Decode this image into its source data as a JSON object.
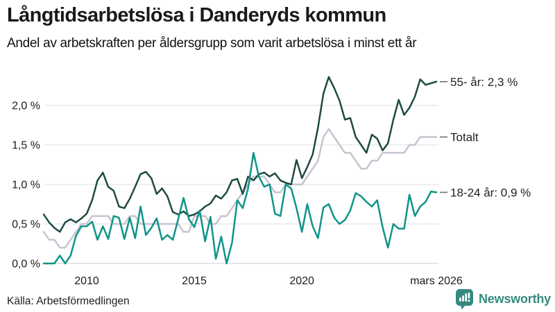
{
  "header": {
    "title": "Långtidsarbetslösa i Danderyds kommun",
    "subtitle": "Andel av arbetskraften per åldersgrupp som varit arbetslösa i minst ett år"
  },
  "footer": {
    "source": "Källa: Arbetsförmedlingen",
    "brand": "Newsworthy"
  },
  "colors": {
    "grid": "#e5e4ea",
    "zero_line": "#d6d5dc",
    "end_dash": "#6e6e6e",
    "axis_text": "#1a1a1a",
    "brand_teal": "#35897f"
  },
  "chart_data": {
    "type": "line",
    "title": "Långtidsarbetslösa i Danderyds kommun",
    "subtitle": "Andel av arbetskraften per åldersgrupp som varit arbetslösa i minst ett år",
    "xlabel": "",
    "ylabel": "",
    "grid": "horizontal",
    "legend_position": "right-end-labels",
    "xlim": [
      2008,
      2026.25
    ],
    "ylim": [
      0,
      2.45
    ],
    "x_start": 2008,
    "x_step": 0.25,
    "x_ticks": [
      {
        "x": 2010,
        "label": "2010"
      },
      {
        "x": 2015,
        "label": "2015"
      },
      {
        "x": 2020,
        "label": "2020"
      },
      {
        "x": 2026.25,
        "label": "mars 2026"
      }
    ],
    "y_ticks": [
      {
        "v": 0,
        "label": "0,0 %"
      },
      {
        "v": 0.5,
        "label": "0,5 %"
      },
      {
        "v": 1,
        "label": "1,0 %"
      },
      {
        "v": 1.5,
        "label": "1,5 %"
      },
      {
        "v": 2,
        "label": "2,0 %"
      }
    ],
    "series": [
      {
        "name": "55- år",
        "end_label": "55- år: 2,3 %",
        "last_value": "2,3 %",
        "color": "#1d4a42",
        "z": 1,
        "values": [
          0.62,
          0.52,
          0.45,
          0.4,
          0.52,
          0.56,
          0.52,
          0.57,
          0.63,
          0.8,
          1.05,
          1.15,
          0.97,
          0.92,
          0.72,
          0.7,
          0.82,
          0.97,
          1.13,
          1.16,
          1.08,
          0.88,
          0.95,
          0.85,
          0.65,
          0.62,
          0.66,
          0.6,
          0.62,
          0.66,
          0.72,
          0.76,
          0.86,
          0.82,
          0.9,
          1.05,
          1.07,
          0.88,
          1.1,
          1.05,
          1.13,
          1.15,
          1.1,
          1.14,
          1.05,
          1.02,
          1.0,
          1.31,
          1.08,
          1.22,
          1.38,
          1.72,
          2.15,
          2.36,
          2.22,
          2.06,
          1.82,
          1.84,
          1.6,
          1.5,
          1.4,
          1.63,
          1.58,
          1.43,
          1.52,
          1.82,
          2.07,
          1.88,
          1.97,
          2.11,
          2.33,
          2.26,
          2.28,
          2.3
        ]
      },
      {
        "name": "Totalt",
        "end_label": "Totalt",
        "last_value": "1,6 %",
        "color": "#c7c3d1",
        "z": 0,
        "values": [
          0.4,
          0.3,
          0.3,
          0.2,
          0.2,
          0.3,
          0.4,
          0.5,
          0.5,
          0.6,
          0.6,
          0.6,
          0.6,
          0.5,
          0.5,
          0.5,
          0.6,
          0.6,
          0.5,
          0.5,
          0.5,
          0.5,
          0.5,
          0.5,
          0.5,
          0.5,
          0.4,
          0.4,
          0.6,
          0.6,
          0.6,
          0.5,
          0.5,
          0.6,
          0.6,
          0.7,
          0.8,
          0.9,
          1.0,
          1.1,
          1.1,
          1.1,
          1.0,
          0.9,
          0.9,
          1.0,
          1.0,
          1.0,
          1.0,
          1.1,
          1.2,
          1.3,
          1.6,
          1.7,
          1.6,
          1.5,
          1.4,
          1.4,
          1.3,
          1.2,
          1.2,
          1.3,
          1.3,
          1.4,
          1.4,
          1.4,
          1.4,
          1.4,
          1.5,
          1.5,
          1.6,
          1.6,
          1.6,
          1.6
        ]
      },
      {
        "name": "18-24 år",
        "end_label": "18-24 år: 0,9 %",
        "last_value": "0,9 %",
        "color": "#0e9488",
        "z": 2,
        "values": [
          0.0,
          0.0,
          0.0,
          0.1,
          0.0,
          0.1,
          0.35,
          0.47,
          0.47,
          0.53,
          0.3,
          0.47,
          0.31,
          0.6,
          0.58,
          0.31,
          0.58,
          0.32,
          0.72,
          0.36,
          0.45,
          0.57,
          0.3,
          0.36,
          0.3,
          0.56,
          0.83,
          0.56,
          0.46,
          0.67,
          0.28,
          0.59,
          0.06,
          0.34,
          0.0,
          0.26,
          0.8,
          0.7,
          0.95,
          1.4,
          1.1,
          0.97,
          1.0,
          0.63,
          0.6,
          1.0,
          0.95,
          0.7,
          0.4,
          0.75,
          0.47,
          0.32,
          0.71,
          0.75,
          0.58,
          0.5,
          0.55,
          0.67,
          0.89,
          0.85,
          0.78,
          0.72,
          0.8,
          0.46,
          0.2,
          0.5,
          0.44,
          0.44,
          0.87,
          0.6,
          0.72,
          0.78,
          0.91,
          0.9
        ]
      }
    ]
  }
}
